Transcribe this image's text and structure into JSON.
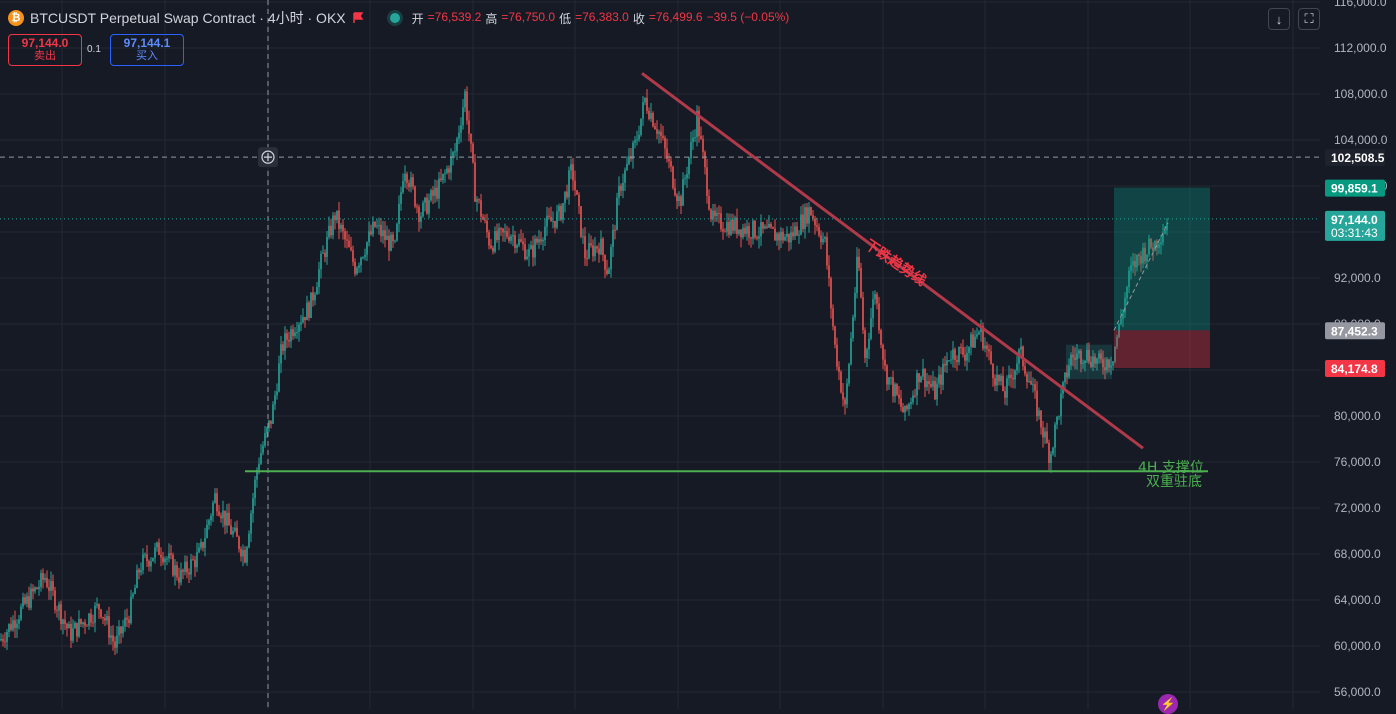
{
  "header": {
    "symbol_title": "BTCUSDT Perpetual Swap Contract · 4小时 · OKX",
    "open_label": "开",
    "open_value": "=76,539.2",
    "high_label": "高",
    "high_value": "=76,750.0",
    "low_label": "低",
    "low_value": "=76,383.0",
    "close_label": "收",
    "close_value": "=76,499.6",
    "change": "−39.5 (−0.05%)"
  },
  "trade": {
    "sell_price": "97,144.0",
    "sell_label": "卖出",
    "size": "0.1",
    "buy_price": "97,144.1",
    "buy_label": "买入"
  },
  "icons": {
    "coin": "bitcoin-icon",
    "flag": "flag-icon",
    "status": "market-status-icon",
    "arrow_down": "arrow-down-icon",
    "fullscreen": "fullscreen-icon",
    "crosshair_plus": "plus-icon",
    "lightning": "lightning-icon"
  },
  "chart_data": {
    "type": "candlestick",
    "price_axis": {
      "ticks": [
        56000,
        60000,
        64000,
        68000,
        72000,
        76000,
        80000,
        84000,
        88000,
        92000,
        96000,
        100000,
        104000,
        108000,
        112000,
        116000
      ],
      "tick_labels": [
        "56,000.0",
        "60,000.0",
        "64,000.0",
        "68,000.0",
        "72,000.0",
        "76,000.0",
        "80,000.0",
        "84,000.0",
        "88,000.0",
        "92,000.0",
        "96,000.0",
        "100,000.0",
        "104,000.0",
        "108,000.0",
        "112,000.0",
        "116,000.0"
      ],
      "range": [
        55500,
        117000
      ],
      "grid": true
    },
    "price_labels": [
      {
        "name": "crosshair-price",
        "value": 102508.5,
        "text": "102,508.5",
        "color": "#d1d4dc",
        "bg": "#1e222d",
        "text_color": "#ffffff"
      },
      {
        "name": "take-profit-price",
        "value": 99859.1,
        "text": "99,859.1",
        "color": "#089981",
        "bg": "#089981",
        "text_color": "#ffffff"
      },
      {
        "name": "current-price",
        "value": 97144.0,
        "text": "97,144.0",
        "countdown": "03:31:43",
        "color": "#26a69a",
        "bg": "#26a69a",
        "text_color": "#ffffff"
      },
      {
        "name": "entry-price",
        "value": 87452.3,
        "text": "87,452.3",
        "color": "#787b86",
        "bg": "#9598a1",
        "text_color": "#ffffff"
      },
      {
        "name": "stop-loss-price",
        "value": 84174.8,
        "text": "84,174.8",
        "color": "#f23645",
        "bg": "#f23645",
        "text_color": "#ffffff"
      }
    ],
    "annotations": {
      "downtrend_label": "下跌趋势线",
      "support_label": "4H 支撑位",
      "double_bottom_label": "双重驻底"
    },
    "series": [
      {
        "name": "candles",
        "note_points": [
          [
            0,
            60500
          ],
          [
            20,
            63000
          ],
          [
            45,
            66000
          ],
          [
            70,
            61000
          ],
          [
            100,
            63500
          ],
          [
            115,
            60000
          ],
          [
            130,
            63000
          ],
          [
            140,
            67000
          ],
          [
            160,
            68500
          ],
          [
            180,
            66000
          ],
          [
            200,
            68000
          ],
          [
            215,
            73000
          ],
          [
            228,
            70500
          ],
          [
            245,
            68000
          ],
          [
            258,
            76000
          ],
          [
            272,
            80000
          ],
          [
            282,
            86000
          ],
          [
            295,
            88000
          ],
          [
            310,
            89500
          ],
          [
            320,
            93000
          ],
          [
            335,
            97500
          ],
          [
            355,
            93000
          ],
          [
            375,
            96500
          ],
          [
            395,
            94500
          ],
          [
            404,
            102000
          ],
          [
            420,
            97500
          ],
          [
            440,
            100000
          ],
          [
            455,
            103000
          ],
          [
            465,
            108000
          ],
          [
            475,
            99500
          ],
          [
            490,
            95000
          ],
          [
            510,
            96000
          ],
          [
            530,
            94000
          ],
          [
            545,
            96500
          ],
          [
            560,
            97500
          ],
          [
            572,
            101500
          ],
          [
            585,
            94000
          ],
          [
            600,
            95000
          ],
          [
            608,
            92500
          ],
          [
            620,
            100000
          ],
          [
            635,
            103500
          ],
          [
            645,
            107500
          ],
          [
            660,
            104500
          ],
          [
            680,
            98500
          ],
          [
            697,
            106000
          ],
          [
            712,
            97000
          ],
          [
            735,
            96500
          ],
          [
            760,
            96000
          ],
          [
            790,
            95500
          ],
          [
            810,
            98000
          ],
          [
            825,
            95000
          ],
          [
            835,
            86000
          ],
          [
            845,
            80500
          ],
          [
            858,
            94000
          ],
          [
            865,
            85000
          ],
          [
            875,
            91000
          ],
          [
            885,
            84000
          ],
          [
            895,
            82000
          ],
          [
            905,
            80000
          ],
          [
            920,
            84000
          ],
          [
            935,
            82000
          ],
          [
            950,
            85500
          ],
          [
            965,
            85500
          ],
          [
            980,
            87500
          ],
          [
            995,
            83500
          ],
          [
            1005,
            82000
          ],
          [
            1020,
            85500
          ],
          [
            1030,
            83000
          ],
          [
            1042,
            79000
          ],
          [
            1050,
            76500
          ],
          [
            1060,
            81000
          ],
          [
            1070,
            85000
          ],
          [
            1085,
            85500
          ],
          [
            1100,
            84500
          ],
          [
            1112,
            85000
          ],
          [
            1120,
            88000
          ],
          [
            1130,
            92500
          ],
          [
            1140,
            94000
          ],
          [
            1155,
            95000
          ],
          [
            1168,
            97000
          ]
        ]
      }
    ]
  }
}
